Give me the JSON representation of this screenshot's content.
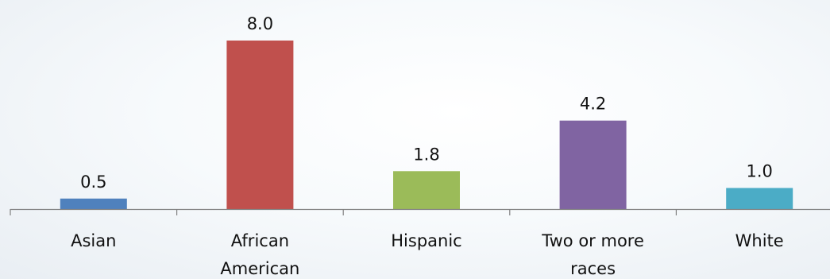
{
  "chart_data": {
    "type": "bar",
    "categories": [
      "Asian",
      "African American",
      "Hispanic",
      "Two or more races",
      "White"
    ],
    "category_lines": [
      [
        "Asian"
      ],
      [
        "African",
        "American"
      ],
      [
        "Hispanic"
      ],
      [
        "Two or more",
        "races"
      ],
      [
        "White"
      ]
    ],
    "values": [
      0.5,
      8.0,
      1.8,
      4.2,
      1.0
    ],
    "value_labels": [
      "0.5",
      "8.0",
      "1.8",
      "4.2",
      "1.0"
    ],
    "colors": [
      "#4f81bd",
      "#c0504d",
      "#9bbb59",
      "#8064a2",
      "#4bacc6"
    ],
    "title": "",
    "xlabel": "",
    "ylabel": "",
    "ylim": [
      0,
      8.0
    ],
    "grid": false,
    "legend": "none"
  }
}
